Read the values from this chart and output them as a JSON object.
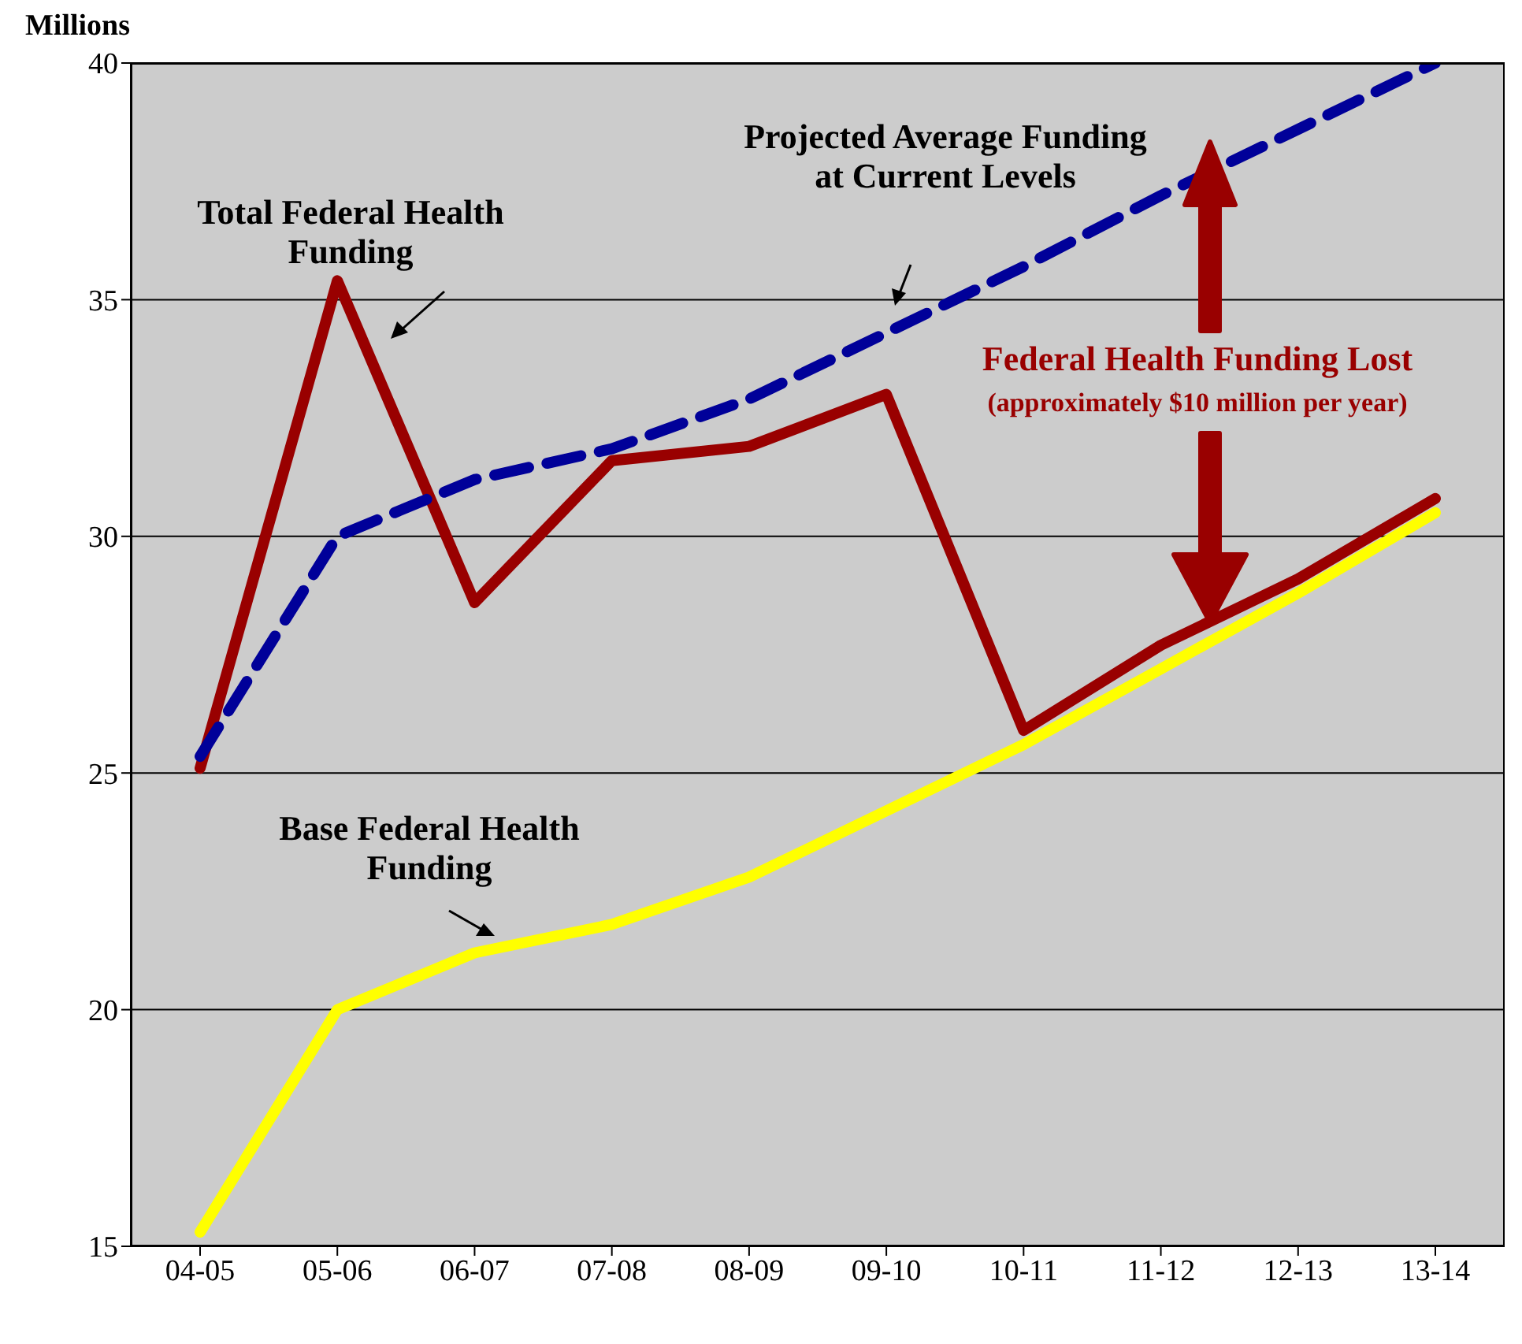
{
  "chart_data": {
    "type": "line",
    "ylabel": "Millions",
    "categories": [
      "04-05",
      "05-06",
      "06-07",
      "07-08",
      "08-09",
      "09-10",
      "10-11",
      "11-12",
      "12-13",
      "13-14"
    ],
    "series": [
      {
        "color": "#990000",
        "values": [
          25.1,
          35.4,
          28.6,
          31.6,
          31.9,
          33.0,
          25.9,
          27.7,
          29.1,
          30.8
        ]
      },
      {
        "color": "#ffff00",
        "values": [
          15.3,
          20.0,
          21.2,
          21.8,
          22.8,
          24.2,
          25.6,
          27.2,
          28.8,
          30.5
        ]
      },
      {
        "color": "#000099",
        "line_style": "dashed",
        "values": [
          25.35,
          30.0,
          31.2,
          31.85,
          32.9,
          34.3,
          35.7,
          37.2,
          38.6,
          40.0
        ]
      }
    ],
    "ylim": [
      15,
      40
    ],
    "yticks": [
      15,
      20,
      25,
      30,
      35,
      40
    ],
    "grid": "y",
    "marker": "none",
    "annotations": [
      "Total Federal Health Funding",
      "Projected Average Funding at Current Levels",
      "Federal Health Funding Lost",
      "(approximately $10 million per year)",
      "Base Federal Health Funding"
    ]
  }
}
